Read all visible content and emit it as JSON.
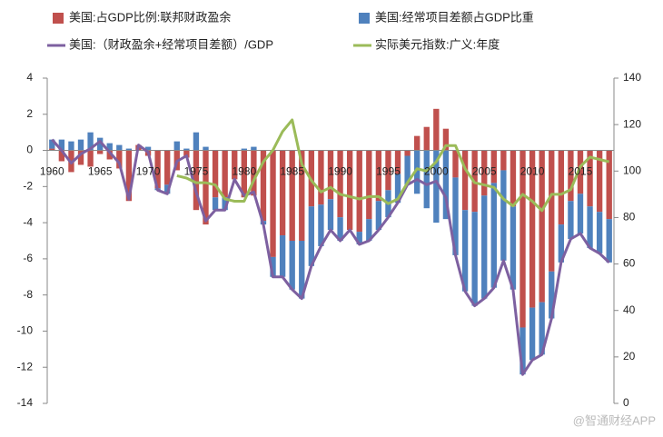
{
  "chart_data": {
    "type": "bar",
    "categories": [
      "1960",
      null,
      null,
      null,
      null,
      "1965",
      null,
      null,
      null,
      null,
      "1970",
      null,
      null,
      null,
      null,
      "1975",
      null,
      null,
      null,
      null,
      "1980",
      null,
      null,
      null,
      null,
      "1985",
      null,
      null,
      null,
      null,
      "1990",
      null,
      null,
      null,
      null,
      "1995",
      null,
      null,
      null,
      null,
      "2000",
      null,
      null,
      null,
      null,
      "2005",
      null,
      null,
      null,
      null,
      "2010",
      null,
      null,
      null,
      null,
      "2015",
      null,
      null,
      null
    ],
    "series": [
      {
        "name": "美国:占GDP比例:联邦财政盈余",
        "color": "#c0504d",
        "kind": "bar",
        "values": [
          0.1,
          -0.6,
          -1.2,
          -0.8,
          -0.9,
          -0.2,
          -0.5,
          -1.0,
          -2.8,
          0.3,
          -0.3,
          -2.1,
          -1.9,
          -1.1,
          -0.4,
          -3.3,
          -4.1,
          -2.6,
          -2.6,
          -1.6,
          -2.6,
          -2.5,
          -3.9,
          -5.9,
          -4.7,
          -5.0,
          -5.0,
          -3.1,
          -3.0,
          -2.7,
          -3.7,
          -4.4,
          -4.5,
          -3.8,
          -2.8,
          -2.2,
          -1.3,
          -0.3,
          0.8,
          1.3,
          2.3,
          1.2,
          -1.5,
          -3.3,
          -3.4,
          -2.5,
          -1.8,
          -1.1,
          -3.1,
          -9.8,
          -8.7,
          -8.4,
          -6.7,
          -4.1,
          -2.8,
          -2.4,
          -3.1,
          -3.4,
          -3.8
        ]
      },
      {
        "name": "美国:经常项目差额占GDP比重",
        "color": "#4f81bd",
        "kind": "bar",
        "values": [
          0.5,
          0.6,
          0.5,
          0.6,
          1.0,
          0.7,
          0.4,
          0.3,
          0.1,
          0.0,
          0.2,
          -0.1,
          -0.5,
          0.5,
          0.1,
          1.0,
          0.2,
          -0.7,
          -0.7,
          0.0,
          0.1,
          0.2,
          -0.2,
          -1.1,
          -2.3,
          -2.7,
          -3.2,
          -3.3,
          -2.3,
          -1.7,
          -1.3,
          0.0,
          -0.7,
          -1.2,
          -1.6,
          -1.5,
          -1.6,
          -1.6,
          -2.4,
          -3.2,
          -4.0,
          -3.8,
          -4.3,
          -4.5,
          -5.2,
          -5.7,
          -5.8,
          -5.0,
          -4.6,
          -2.6,
          -2.9,
          -2.9,
          -2.6,
          -2.1,
          -2.1,
          -2.2,
          -2.3,
          -2.3,
          -2.4
        ]
      },
      {
        "name": "美国:（财政盈余+经常项目差额）/GDP",
        "color": "#7d60a0",
        "kind": "line",
        "values": [
          0.6,
          0,
          -0.7,
          -0.2,
          0.1,
          0.5,
          -0.1,
          -0.7,
          -2.7,
          0.3,
          -0.1,
          -2.2,
          -2.4,
          -0.6,
          -0.3,
          -2.3,
          -3.9,
          -3.3,
          -3.3,
          -1.6,
          -2.5,
          -2.3,
          -4.1,
          -7.0,
          -7.0,
          -7.7,
          -8.2,
          -6.4,
          -5.3,
          -4.4,
          -5.0,
          -4.4,
          -5.2,
          -5.0,
          -4.4,
          -3.7,
          -2.9,
          -1.9,
          -1.6,
          -1.9,
          -1.7,
          -2.6,
          -5.8,
          -7.8,
          -8.6,
          -8.2,
          -7.6,
          -6.1,
          -7.7,
          -12.4,
          -11.6,
          -11.3,
          -9.3,
          -6.2,
          -4.9,
          -4.6,
          -5.4,
          -5.7,
          -6.2
        ]
      },
      {
        "name": "实际美元指数:广义:年度",
        "color": "#9bbb59",
        "kind": "line",
        "axis": "y2",
        "values": [
          null,
          null,
          null,
          null,
          null,
          null,
          null,
          null,
          null,
          null,
          null,
          null,
          null,
          98,
          97,
          95,
          95,
          94,
          88,
          87,
          87,
          96,
          104,
          109,
          117,
          122,
          103,
          96,
          91,
          93,
          90,
          89,
          88,
          89,
          89,
          86,
          88,
          95,
          101,
          100,
          104,
          111,
          111,
          101,
          95,
          94,
          93,
          88,
          85,
          90,
          87,
          83,
          90,
          90,
          92,
          102,
          106,
          105,
          104
        ]
      }
    ],
    "ylim": [
      -14,
      4
    ],
    "yticks": [
      -14,
      -12,
      -10,
      -8,
      -6,
      -4,
      -2,
      0,
      2,
      4
    ],
    "y2lim": [
      0,
      140
    ],
    "y2ticks": [
      0,
      20,
      40,
      60,
      80,
      100,
      120,
      140
    ],
    "stacked": true,
    "grid": false
  },
  "watermark": "@智通财经APP"
}
